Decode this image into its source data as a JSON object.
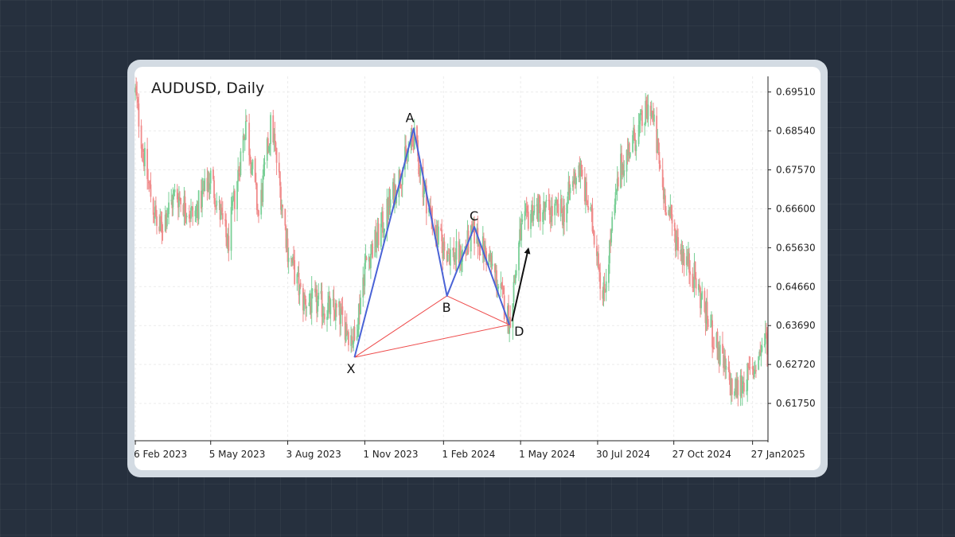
{
  "chart_data": {
    "type": "candlestick",
    "title": "AUDUSD, Daily",
    "ylim": [
      0.6082,
      0.699
    ],
    "yticks": [
      "0.69510",
      "0.68540",
      "0.67570",
      "0.66600",
      "0.65630",
      "0.64660",
      "0.63690",
      "0.62720",
      "0.61750"
    ],
    "xticks": [
      "6 Feb 2023",
      "5 May 2023",
      "3 Aug 2023",
      "1 Nov 2023",
      "1 Feb 2024",
      "1 May 2024",
      "30 Jul 2024",
      "27 Oct 2024",
      "27 Jan2025"
    ],
    "grid": true,
    "colors": {
      "up": "#79cf96",
      "down": "#f08a8a",
      "harmonic_blue": "#4a63d6",
      "harmonic_red": "#ee4b4b",
      "arrow": "#111111"
    },
    "price_path": [
      [
        "6 Feb 2023",
        0.695
      ],
      [
        "2023-02-18",
        0.676
      ],
      [
        "2023-03-05",
        0.66
      ],
      [
        "2023-03-25",
        0.67
      ],
      [
        "2023-04-15",
        0.664
      ],
      [
        "5 May 2023",
        0.674
      ],
      [
        "2023-05-25",
        0.657
      ],
      [
        "2023-06-15",
        0.688
      ],
      [
        "2023-06-30",
        0.664
      ],
      [
        "2023-07-15",
        0.688
      ],
      [
        "3 Aug 2023",
        0.656
      ],
      [
        "2023-08-20",
        0.643
      ],
      [
        "2023-09-10",
        0.642
      ],
      [
        "2023-10-01",
        0.64
      ],
      [
        "2023-10-20",
        0.633
      ],
      [
        "1 Nov 2023",
        0.652
      ],
      [
        "2023-11-20",
        0.661
      ],
      [
        "2023-12-28",
        0.684
      ],
      [
        "2024-01-10",
        0.67
      ],
      [
        "2024-01-25",
        0.659
      ],
      [
        "1 Feb 2024",
        0.656
      ],
      [
        "2024-02-20",
        0.654
      ],
      [
        "2024-03-08",
        0.66
      ],
      [
        "2024-03-28",
        0.652
      ],
      [
        "2024-04-18",
        0.638
      ],
      [
        "1 May 2024",
        0.66
      ],
      [
        "2024-05-15",
        0.666
      ],
      [
        "2024-06-20",
        0.665
      ],
      [
        "2024-07-08",
        0.677
      ],
      [
        "30 Jul 2024",
        0.656
      ],
      [
        "2024-08-05",
        0.643
      ],
      [
        "2024-08-25",
        0.676
      ],
      [
        "2024-09-30",
        0.692
      ],
      [
        "2024-10-15",
        0.67
      ],
      [
        "27 Oct 2024",
        0.66
      ],
      [
        "2024-11-20",
        0.649
      ],
      [
        "2024-12-15",
        0.632
      ],
      [
        "2025-01-05",
        0.62
      ],
      [
        "2025-01-15",
        0.623
      ],
      [
        "27 Jan2025",
        0.625
      ],
      [
        "2025-02-10",
        0.633
      ]
    ],
    "harmonic_pattern": {
      "points": [
        {
          "label": "X",
          "date": "2023-10-20",
          "price": 0.629
        },
        {
          "label": "A",
          "date": "2023-12-28",
          "price": 0.686
        },
        {
          "label": "B",
          "date": "2024-02-05",
          "price": 0.6443
        },
        {
          "label": "C",
          "date": "2024-03-08",
          "price": 0.6615
        },
        {
          "label": "D",
          "date": "2024-04-18",
          "price": 0.6371
        }
      ],
      "projection_arrow": {
        "from": [
          "2024-04-21",
          0.638
        ],
        "to": [
          "2024-05-10",
          0.656
        ]
      }
    }
  }
}
